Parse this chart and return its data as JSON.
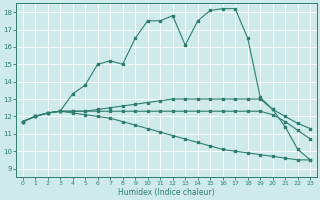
{
  "bg_color": "#ceeaea",
  "grid_color": "#b0d8d8",
  "line_color": "#2e7d6e",
  "xlabel": "Humidex (Indice chaleur)",
  "xlim": [
    -0.5,
    23.5
  ],
  "ylim": [
    8.5,
    18.5
  ],
  "yticks": [
    9,
    10,
    11,
    12,
    13,
    14,
    15,
    16,
    17,
    18
  ],
  "xticks": [
    0,
    1,
    2,
    3,
    4,
    5,
    6,
    7,
    8,
    9,
    10,
    11,
    12,
    13,
    14,
    15,
    16,
    17,
    18,
    19,
    20,
    21,
    22,
    23
  ],
  "curves": [
    {
      "x": [
        0,
        1,
        2,
        3,
        4,
        5,
        6,
        7,
        8,
        9,
        10,
        11,
        12,
        13,
        14,
        15,
        16,
        17,
        18,
        19,
        20,
        21,
        22,
        23
      ],
      "y": [
        11.7,
        12.0,
        12.2,
        12.3,
        13.3,
        13.8,
        15.0,
        15.2,
        15.0,
        16.5,
        17.5,
        17.5,
        17.8,
        16.1,
        17.5,
        18.1,
        18.2,
        18.2,
        16.5,
        13.1,
        12.4,
        11.4,
        10.1,
        9.5
      ]
    },
    {
      "x": [
        0,
        1,
        2,
        3,
        4,
        5,
        6,
        7,
        8,
        9,
        10,
        11,
        12,
        13,
        14,
        15,
        16,
        17,
        18,
        19,
        20,
        21,
        22,
        23
      ],
      "y": [
        11.7,
        12.0,
        12.2,
        12.3,
        12.3,
        12.3,
        12.4,
        12.5,
        12.6,
        12.7,
        12.8,
        12.9,
        13.0,
        13.0,
        13.0,
        13.0,
        13.0,
        13.0,
        13.0,
        13.0,
        12.4,
        12.0,
        11.6,
        11.3
      ]
    },
    {
      "x": [
        0,
        1,
        2,
        3,
        4,
        5,
        6,
        7,
        8,
        9,
        10,
        11,
        12,
        13,
        14,
        15,
        16,
        17,
        18,
        19,
        20,
        21,
        22,
        23
      ],
      "y": [
        11.7,
        12.0,
        12.2,
        12.3,
        12.3,
        12.3,
        12.3,
        12.3,
        12.3,
        12.3,
        12.3,
        12.3,
        12.3,
        12.3,
        12.3,
        12.3,
        12.3,
        12.3,
        12.3,
        12.3,
        12.1,
        11.7,
        11.2,
        10.7
      ]
    },
    {
      "x": [
        0,
        1,
        2,
        3,
        4,
        5,
        6,
        7,
        8,
        9,
        10,
        11,
        12,
        13,
        14,
        15,
        16,
        17,
        18,
        19,
        20,
        21,
        22,
        23
      ],
      "y": [
        11.7,
        12.0,
        12.2,
        12.3,
        12.2,
        12.1,
        12.0,
        11.9,
        11.7,
        11.5,
        11.3,
        11.1,
        10.9,
        10.7,
        10.5,
        10.3,
        10.1,
        10.0,
        9.9,
        9.8,
        9.7,
        9.6,
        9.5,
        9.5
      ]
    }
  ]
}
